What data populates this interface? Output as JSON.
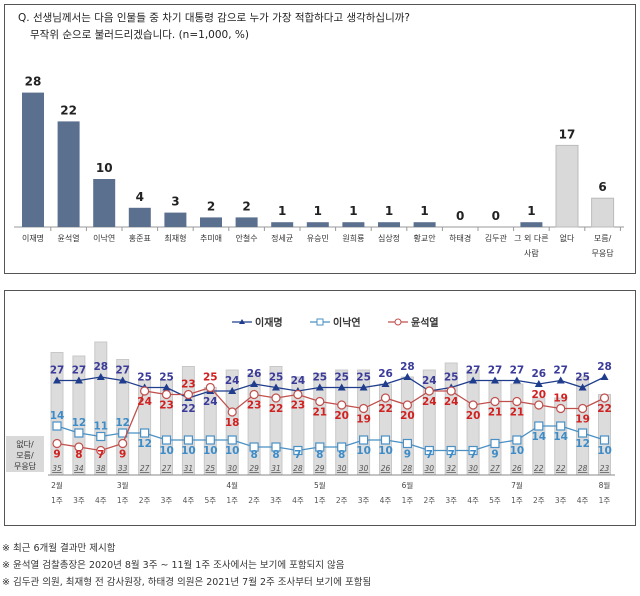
{
  "question": {
    "line1": "Q. 선생님께서는 다음 인물들 중 차기 대통령 감으로 누가 가장 적합하다고 생각하십니까?",
    "line2": "무작위 순으로 불러드리겠습니다. (n=1,000, %)"
  },
  "notes": [
    "※ 최근 6개월 결과만 제시함",
    "※ 윤석열 검찰총장은 2020년 8월 3주 ~ 11월 1주 조사에서는 보기에 포함되지 않음",
    "※ 김두관 의원, 최재형 전 감사원장, 하태경 의원은 2021년 7월 2주 조사부터 보기에 포함됨"
  ],
  "chart_data": [
    {
      "type": "bar",
      "categories": [
        "이재명",
        "윤석열",
        "이낙연",
        "홍준표",
        "최재형",
        "추미애",
        "안철수",
        "정세균",
        "유승민",
        "원희룡",
        "심상정",
        "황교안",
        "하태경",
        "김두관",
        "그 외 다른 사람",
        "없다",
        "모름/ 무응답"
      ],
      "values": [
        28,
        22,
        10,
        4,
        3,
        2,
        2,
        1,
        1,
        1,
        1,
        1,
        0,
        0,
        1,
        17,
        6
      ],
      "colors": {
        "candidate": "#5b6f8f",
        "none": "#d9d9d9"
      },
      "ylim": [
        0,
        30
      ]
    },
    {
      "type": "line",
      "months": [
        {
          "label": "2월",
          "index": 0
        },
        {
          "label": "3월",
          "index": 3
        },
        {
          "label": "4월",
          "index": 8
        },
        {
          "label": "5월",
          "index": 12
        },
        {
          "label": "6월",
          "index": 16
        },
        {
          "label": "7월",
          "index": 21
        },
        {
          "label": "8월",
          "index": 25
        }
      ],
      "weeks": [
        "1주",
        "3주",
        "4주",
        "1주",
        "2주",
        "3주",
        "4주",
        "5주",
        "1주",
        "2주",
        "3주",
        "4주",
        "1주",
        "2주",
        "3주",
        "4주",
        "1주",
        "2주",
        "3주",
        "4주",
        "5주",
        "1주",
        "2주",
        "3주",
        "4주",
        "1주"
      ],
      "series": [
        {
          "name": "이재명",
          "color": "#1f3d8c",
          "label_color": "#3b3b9a",
          "marker": "triangle",
          "values": [
            27,
            27,
            28,
            27,
            25,
            25,
            22,
            24,
            24,
            26,
            25,
            24,
            25,
            25,
            25,
            26,
            28,
            24,
            25,
            27,
            27,
            27,
            26,
            27,
            25,
            28
          ]
        },
        {
          "name": "이낙연",
          "color": "#4a90c4",
          "label_color": "#3d8cc8",
          "marker": "square",
          "values": [
            14,
            12,
            11,
            12,
            12,
            10,
            10,
            10,
            10,
            8,
            8,
            7,
            8,
            8,
            10,
            10,
            9,
            7,
            7,
            7,
            9,
            10,
            14,
            14,
            12,
            10
          ]
        },
        {
          "name": "윤석열",
          "color": "#c0504d",
          "label_color": "#d02020",
          "marker": "circle",
          "values": [
            9,
            8,
            7,
            9,
            24,
            23,
            23,
            25,
            18,
            23,
            22,
            23,
            21,
            20,
            19,
            22,
            20,
            24,
            24,
            20,
            21,
            21,
            20,
            19,
            19,
            22
          ]
        }
      ],
      "bars": {
        "name": "없다/ 모름/ 무응답",
        "color": "#dcdcdc",
        "values": [
          35,
          34,
          38,
          33,
          27,
          27,
          31,
          25,
          30,
          29,
          31,
          28,
          29,
          30,
          30,
          26,
          28,
          30,
          32,
          30,
          27,
          26,
          22,
          22,
          28,
          23
        ]
      },
      "ylim": [
        0,
        40
      ],
      "legend_position": "top-center"
    }
  ]
}
